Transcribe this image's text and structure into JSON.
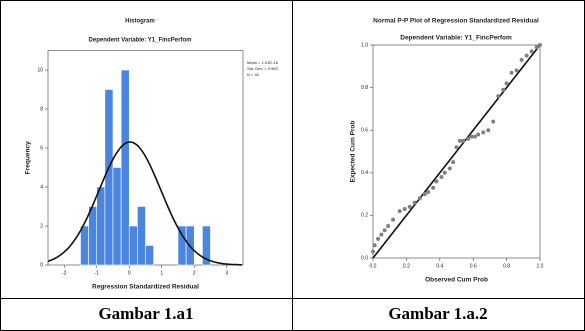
{
  "chart_data": [
    {
      "type": "histogram",
      "title": "Histogram",
      "subtitle": "Dependent Variable: Y1_FincPerfom",
      "x_label": "Regression Standardized Residual",
      "y_label": "Frequency",
      "annotations": [
        "Mean = 1.01E-16",
        "Std. Dev. = 0.953",
        "N = 45"
      ],
      "bins": [
        -1.5,
        -1.25,
        -1,
        -0.75,
        -0.5,
        -0.25,
        0,
        0.25,
        0.5,
        0.75,
        1,
        1.25,
        1.5,
        1.75,
        2,
        2.25,
        2.5,
        2.75
      ],
      "values": [
        2,
        3,
        4,
        9,
        5,
        10,
        2,
        3,
        1,
        0,
        0,
        0,
        2,
        2,
        0,
        2,
        0
      ],
      "color": "#4a86e0",
      "xlim": [
        -2.5,
        3.5
      ],
      "xticks": [
        -2,
        -1,
        0,
        1,
        2,
        3
      ],
      "ylim": [
        0,
        11
      ],
      "yticks": [
        0,
        2,
        4,
        6,
        8,
        10
      ]
    },
    {
      "type": "scatter",
      "title": "Normal P-P Plot of Regression Standardized Residual",
      "subtitle": "Dependent Variable: Y1_FincPerfom",
      "x_label": "Observed Cum Prob",
      "y_label": "Expected Cum Prob",
      "x": [
        0.0,
        0.01,
        0.03,
        0.05,
        0.07,
        0.09,
        0.12,
        0.16,
        0.19,
        0.22,
        0.25,
        0.28,
        0.31,
        0.33,
        0.36,
        0.38,
        0.41,
        0.43,
        0.46,
        0.48,
        0.5,
        0.52,
        0.54,
        0.57,
        0.59,
        0.61,
        0.63,
        0.66,
        0.69,
        0.72,
        0.75,
        0.78,
        0.8,
        0.83,
        0.86,
        0.89,
        0.92,
        0.95,
        0.98,
        1.0
      ],
      "values": [
        0.03,
        0.06,
        0.09,
        0.11,
        0.13,
        0.15,
        0.18,
        0.22,
        0.23,
        0.24,
        0.26,
        0.28,
        0.3,
        0.31,
        0.33,
        0.36,
        0.38,
        0.4,
        0.42,
        0.45,
        0.52,
        0.55,
        0.55,
        0.56,
        0.57,
        0.57,
        0.58,
        0.59,
        0.6,
        0.64,
        0.76,
        0.79,
        0.82,
        0.87,
        0.88,
        0.93,
        0.95,
        0.97,
        0.99,
        1.0
      ],
      "color": "#808080",
      "xlim": [
        0,
        1
      ],
      "xticks": [
        {
          "value": 0,
          "label": "0.0"
        },
        {
          "value": 0.2,
          "label": "0.2"
        },
        {
          "value": 0.4,
          "label": "0.4"
        },
        {
          "value": 0.6,
          "label": "0.6"
        },
        {
          "value": 0.8,
          "label": "0.8"
        },
        {
          "value": 1,
          "label": "1.0"
        }
      ],
      "ylim": [
        0,
        1
      ],
      "yticks": [
        {
          "value": 0,
          "label": "0.0"
        },
        {
          "value": 0.2,
          "label": "0.2"
        },
        {
          "value": 0.4,
          "label": "0.4"
        },
        {
          "value": 0.6,
          "label": "0.6"
        },
        {
          "value": 0.8,
          "label": "0.8"
        },
        {
          "value": 1,
          "label": "1.0"
        }
      ]
    }
  ],
  "captions": [
    "Gambar 1.a1",
    "Gambar 1.a.2"
  ]
}
